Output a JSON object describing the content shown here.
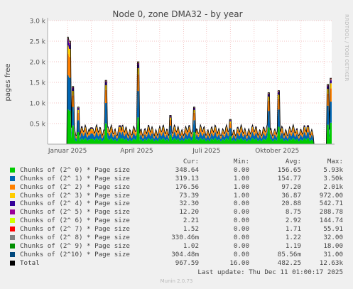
{
  "chart_data": {
    "type": "area",
    "title": "Node 0, zone DMA32 - by year",
    "ylabel": "pages free",
    "ylim": [
      0,
      3000
    ],
    "yticks": [
      {
        "value": 500,
        "label": "0.5 k"
      },
      {
        "value": 1000,
        "label": "1.0 k"
      },
      {
        "value": 1500,
        "label": "1.5 k"
      },
      {
        "value": 2000,
        "label": "2.0 k"
      },
      {
        "value": 2500,
        "label": "2.5 k"
      },
      {
        "value": 3000,
        "label": "3.0 k"
      }
    ],
    "xticks": [
      {
        "label": "Januar 2025",
        "date": "2025-01-01"
      },
      {
        "label": "April 2025",
        "date": "2025-04-01"
      },
      {
        "label": "Juli 2025",
        "date": "2025-07-01"
      },
      {
        "label": "Oktober 2025",
        "date": "2025-10-01"
      }
    ],
    "xlim": [
      "2024-12-06",
      "2025-12-11"
    ],
    "grid": true,
    "data_gaps": [
      [
        "2024-12-06",
        "2024-12-31"
      ],
      [
        "2025-11-18",
        "2025-12-04"
      ]
    ],
    "total_approx": [
      {
        "date": "2025-01-01",
        "value": 2600
      },
      {
        "date": "2025-01-04",
        "value": 2500
      },
      {
        "date": "2025-01-08",
        "value": 1400
      },
      {
        "date": "2025-01-15",
        "value": 900
      },
      {
        "date": "2025-02-01",
        "value": 400
      },
      {
        "date": "2025-02-20",
        "value": 1550
      },
      {
        "date": "2025-03-10",
        "value": 450
      },
      {
        "date": "2025-04-03",
        "value": 2000
      },
      {
        "date": "2025-05-15",
        "value": 700
      },
      {
        "date": "2025-06-15",
        "value": 900
      },
      {
        "date": "2025-08-01",
        "value": 600
      },
      {
        "date": "2025-09-20",
        "value": 1250
      },
      {
        "date": "2025-10-03",
        "value": 1300
      },
      {
        "date": "2025-11-10",
        "value": 450
      },
      {
        "date": "2025-12-06",
        "value": 1450
      },
      {
        "date": "2025-12-10",
        "value": 1600
      }
    ],
    "legend_headers": {
      "cur": "Cur:",
      "min": "Min:",
      "avg": "Avg:",
      "max": "Max:"
    },
    "series": [
      {
        "name": "Chunks of (2^ 0) * Page size",
        "color": "#00cc00",
        "cur": "348.64",
        "min": "0.00",
        "avg": "156.65",
        "max": "5.93k"
      },
      {
        "name": "Chunks of (2^ 1) * Page size",
        "color": "#0066b3",
        "cur": "319.13",
        "min": "1.00",
        "avg": "154.77",
        "max": "3.50k"
      },
      {
        "name": "Chunks of (2^ 2) * Page size",
        "color": "#ff8000",
        "cur": "176.56",
        "min": "1.00",
        "avg": "97.20",
        "max": "2.01k"
      },
      {
        "name": "Chunks of (2^ 3) * Page size",
        "color": "#ffcc00",
        "cur": "73.39",
        "min": "1.00",
        "avg": "36.87",
        "max": "972.00"
      },
      {
        "name": "Chunks of (2^ 4) * Page size",
        "color": "#330099",
        "cur": "32.30",
        "min": "0.00",
        "avg": "20.88",
        "max": "542.71"
      },
      {
        "name": "Chunks of (2^ 5) * Page size",
        "color": "#990099",
        "cur": "12.20",
        "min": "0.00",
        "avg": "8.75",
        "max": "288.78"
      },
      {
        "name": "Chunks of (2^ 6) * Page size",
        "color": "#ccff00",
        "cur": "2.21",
        "min": "0.00",
        "avg": "2.92",
        "max": "144.74"
      },
      {
        "name": "Chunks of (2^ 7) * Page size",
        "color": "#ff0000",
        "cur": "1.52",
        "min": "0.00",
        "avg": "1.71",
        "max": "55.91"
      },
      {
        "name": "Chunks of (2^ 8) * Page size",
        "color": "#808080",
        "cur": "330.46m",
        "min": "0.00",
        "avg": "1.22",
        "max": "32.00"
      },
      {
        "name": "Chunks of (2^ 9) * Page size",
        "color": "#008f00",
        "cur": "1.02",
        "min": "0.00",
        "avg": "1.19",
        "max": "18.00"
      },
      {
        "name": "Chunks of (2^10) * Page size",
        "color": "#00487d",
        "cur": "304.48m",
        "min": "0.00",
        "avg": "85.56m",
        "max": "31.00"
      },
      {
        "name": "Total",
        "color": "#000000",
        "cur": "967.59",
        "min": "16.00",
        "avg": "482.25",
        "max": "12.63k"
      }
    ]
  },
  "last_update": "Last update: Thu Dec 11 01:00:17 2025",
  "footer": "Munin 2.0.73",
  "rrd_tag": "RRDTOOL / TOBI OETIKER"
}
